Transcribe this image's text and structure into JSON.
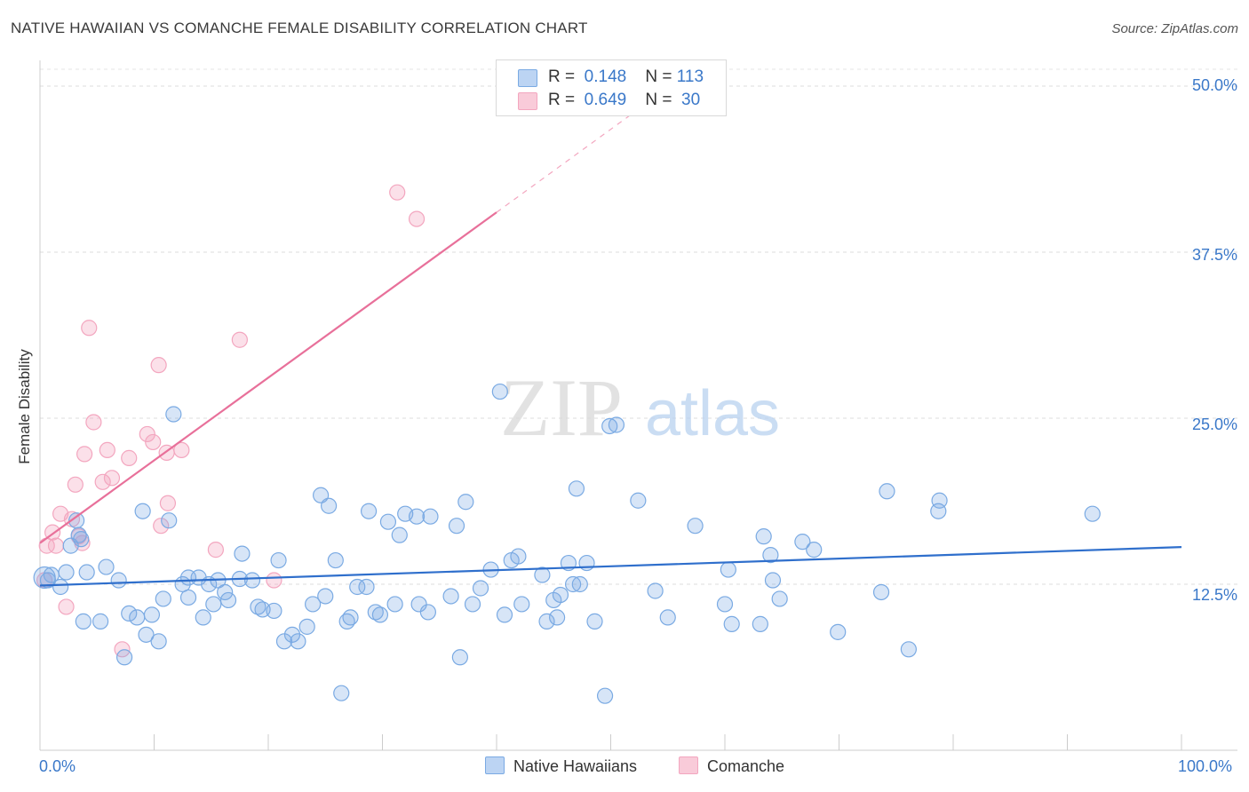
{
  "title": "NATIVE HAWAIIAN VS COMANCHE FEMALE DISABILITY CORRELATION CHART",
  "source": "Source: ZipAtlas.com",
  "watermark": {
    "zip": "ZIP",
    "atlas": "atlas"
  },
  "colors": {
    "blue": "#7aaae3",
    "blue_line": "#2f6fcc",
    "pink": "#f3a6bf",
    "pink_line": "#e8709a",
    "axis_text": "#3a78c9"
  },
  "legend": {
    "rows": [
      {
        "r_label": "R =",
        "r_value": "0.148",
        "n_label": "N =",
        "n_value": "113"
      },
      {
        "r_label": "R =",
        "r_value": "0.649",
        "n_label": "N =",
        "n_value": "30"
      }
    ]
  },
  "bottom_legend": {
    "series1": "Native Hawaiians",
    "series2": "Comanche"
  },
  "chart_data": {
    "type": "scatter",
    "title": "NATIVE HAWAIIAN VS COMANCHE FEMALE DISABILITY CORRELATION CHART",
    "xlabel": "",
    "ylabel": "Female Disability",
    "xlim": [
      0,
      100
    ],
    "ylim": [
      0,
      50
    ],
    "x_tick_labels": [
      "0.0%",
      "100.0%"
    ],
    "y_ticks": [
      12.5,
      25.0,
      37.5,
      50.0
    ],
    "y_tick_labels": [
      "12.5%",
      "25.0%",
      "37.5%",
      "50.0%"
    ],
    "grid": true,
    "series": [
      {
        "name": "Native Hawaiians",
        "r": 0.148,
        "n": 113,
        "trend": {
          "x": [
            0,
            100
          ],
          "y": [
            12.4,
            15.3
          ]
        },
        "points": [
          [
            0.4,
            13.0
          ],
          [
            0.7,
            12.8
          ],
          [
            1.0,
            13.2
          ],
          [
            1.8,
            12.3
          ],
          [
            2.3,
            13.4
          ],
          [
            2.7,
            15.4
          ],
          [
            3.2,
            17.3
          ],
          [
            3.4,
            16.2
          ],
          [
            3.6,
            15.9
          ],
          [
            3.8,
            9.7
          ],
          [
            4.1,
            13.4
          ],
          [
            5.3,
            9.7
          ],
          [
            5.8,
            13.8
          ],
          [
            6.9,
            12.8
          ],
          [
            7.4,
            7.0
          ],
          [
            7.8,
            10.3
          ],
          [
            8.5,
            10.0
          ],
          [
            9.0,
            18.0
          ],
          [
            9.3,
            8.7
          ],
          [
            9.8,
            10.2
          ],
          [
            10.4,
            8.2
          ],
          [
            10.8,
            11.4
          ],
          [
            11.3,
            17.3
          ],
          [
            11.7,
            25.3
          ],
          [
            12.5,
            12.5
          ],
          [
            13.0,
            11.5
          ],
          [
            13.0,
            13.0
          ],
          [
            13.9,
            13.0
          ],
          [
            14.3,
            10.0
          ],
          [
            14.8,
            12.5
          ],
          [
            15.2,
            11.0
          ],
          [
            15.6,
            12.8
          ],
          [
            16.2,
            11.9
          ],
          [
            16.5,
            11.3
          ],
          [
            17.5,
            12.9
          ],
          [
            17.7,
            14.8
          ],
          [
            18.6,
            12.8
          ],
          [
            19.1,
            10.8
          ],
          [
            19.5,
            10.6
          ],
          [
            20.5,
            10.5
          ],
          [
            20.9,
            14.3
          ],
          [
            21.4,
            8.2
          ],
          [
            22.1,
            8.7
          ],
          [
            22.6,
            8.2
          ],
          [
            23.4,
            9.3
          ],
          [
            23.9,
            11.0
          ],
          [
            24.6,
            19.2
          ],
          [
            25.0,
            11.6
          ],
          [
            25.3,
            18.4
          ],
          [
            25.9,
            14.3
          ],
          [
            26.4,
            4.3
          ],
          [
            26.9,
            9.7
          ],
          [
            27.2,
            10.0
          ],
          [
            27.8,
            12.3
          ],
          [
            28.6,
            12.3
          ],
          [
            28.8,
            18.0
          ],
          [
            29.4,
            10.4
          ],
          [
            29.8,
            10.2
          ],
          [
            30.5,
            17.2
          ],
          [
            31.1,
            11.0
          ],
          [
            31.5,
            16.2
          ],
          [
            32.0,
            17.8
          ],
          [
            33.0,
            17.6
          ],
          [
            33.2,
            11.0
          ],
          [
            34.0,
            10.4
          ],
          [
            34.2,
            17.6
          ],
          [
            36.0,
            11.6
          ],
          [
            36.5,
            16.9
          ],
          [
            36.8,
            7.0
          ],
          [
            37.3,
            18.7
          ],
          [
            37.9,
            11.0
          ],
          [
            38.6,
            12.2
          ],
          [
            39.5,
            13.6
          ],
          [
            40.3,
            27.0
          ],
          [
            40.7,
            10.2
          ],
          [
            41.3,
            14.3
          ],
          [
            41.9,
            14.6
          ],
          [
            42.2,
            11.0
          ],
          [
            44.0,
            13.2
          ],
          [
            44.4,
            9.7
          ],
          [
            45.0,
            11.3
          ],
          [
            45.3,
            10.0
          ],
          [
            45.6,
            11.7
          ],
          [
            46.3,
            14.1
          ],
          [
            46.7,
            12.5
          ],
          [
            47.0,
            19.7
          ],
          [
            47.3,
            12.5
          ],
          [
            47.9,
            14.1
          ],
          [
            48.6,
            9.7
          ],
          [
            49.5,
            4.1
          ],
          [
            49.9,
            24.4
          ],
          [
            50.5,
            24.5
          ],
          [
            52.4,
            18.8
          ],
          [
            53.9,
            12.0
          ],
          [
            55.0,
            10.0
          ],
          [
            57.4,
            16.9
          ],
          [
            60.0,
            11.0
          ],
          [
            60.3,
            13.6
          ],
          [
            60.6,
            9.5
          ],
          [
            63.1,
            9.5
          ],
          [
            63.4,
            16.1
          ],
          [
            64.0,
            14.7
          ],
          [
            64.2,
            12.8
          ],
          [
            64.8,
            11.4
          ],
          [
            66.8,
            15.7
          ],
          [
            67.8,
            15.1
          ],
          [
            69.9,
            8.9
          ],
          [
            73.7,
            11.9
          ],
          [
            74.2,
            19.5
          ],
          [
            76.1,
            7.6
          ],
          [
            78.7,
            18.0
          ],
          [
            78.8,
            18.8
          ],
          [
            92.2,
            17.8
          ]
        ]
      },
      {
        "name": "Comanche",
        "r": 0.649,
        "n": 30,
        "trend": {
          "x": [
            0,
            40
          ],
          "y": [
            15.6,
            40.5
          ]
        },
        "trend_dashed": {
          "x": [
            40,
            52
          ],
          "y": [
            40.5,
            48.0
          ]
        },
        "points": [
          [
            0.4,
            12.8
          ],
          [
            0.6,
            15.4
          ],
          [
            1.1,
            16.4
          ],
          [
            1.4,
            15.4
          ],
          [
            1.8,
            17.8
          ],
          [
            2.3,
            10.8
          ],
          [
            2.8,
            17.4
          ],
          [
            3.1,
            20.0
          ],
          [
            3.4,
            16.1
          ],
          [
            3.7,
            15.6
          ],
          [
            3.9,
            22.3
          ],
          [
            4.3,
            31.8
          ],
          [
            4.7,
            24.7
          ],
          [
            5.5,
            20.2
          ],
          [
            5.9,
            22.6
          ],
          [
            6.3,
            20.5
          ],
          [
            7.2,
            7.6
          ],
          [
            7.8,
            22.0
          ],
          [
            9.4,
            23.8
          ],
          [
            9.9,
            23.2
          ],
          [
            10.4,
            29.0
          ],
          [
            10.6,
            16.9
          ],
          [
            11.1,
            22.4
          ],
          [
            11.2,
            18.6
          ],
          [
            12.4,
            22.6
          ],
          [
            15.4,
            15.1
          ],
          [
            17.5,
            30.9
          ],
          [
            20.5,
            12.8
          ],
          [
            31.3,
            42.0
          ],
          [
            33.0,
            40.0
          ]
        ]
      }
    ]
  }
}
